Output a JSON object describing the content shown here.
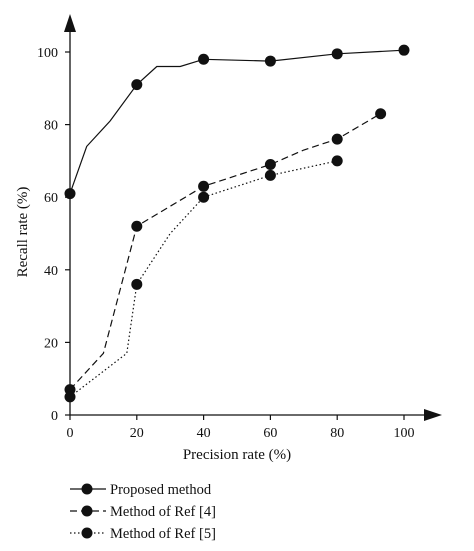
{
  "chart_data": {
    "type": "line",
    "title": "",
    "xlabel": "Precision rate (%)",
    "ylabel": "Recall rate (%)",
    "xlim": [
      0,
      100
    ],
    "ylim": [
      0,
      100
    ],
    "xticks": [
      0,
      20,
      40,
      60,
      80,
      100
    ],
    "yticks": [
      0,
      20,
      40,
      60,
      80,
      100
    ],
    "grid": false,
    "legend_position": "bottom-left",
    "series": [
      {
        "name": "Proposed method",
        "style": "solid",
        "color": "#111111",
        "x": [
          0,
          5,
          12,
          20,
          26,
          33,
          40,
          60,
          80,
          100
        ],
        "y": [
          61,
          74,
          81,
          91,
          96,
          96,
          98,
          97.5,
          99.5,
          100.5
        ],
        "marker_x": [
          0,
          20,
          40,
          60,
          80,
          100
        ],
        "marker_y": [
          61,
          91,
          98,
          97.5,
          99.5,
          100.5
        ]
      },
      {
        "name": "Method of Ref [4]",
        "style": "dashed",
        "color": "#111111",
        "x": [
          0,
          10,
          20,
          40,
          60,
          70,
          80,
          93
        ],
        "y": [
          7,
          17,
          52,
          63,
          69,
          73,
          76,
          83
        ],
        "marker_x": [
          0,
          20,
          40,
          60,
          80,
          93
        ],
        "marker_y": [
          7,
          52,
          63,
          69,
          76,
          83
        ]
      },
      {
        "name": "Method of Ref [5]",
        "style": "dotted",
        "color": "#111111",
        "x": [
          0,
          17,
          20,
          30,
          40,
          60,
          80
        ],
        "y": [
          5,
          17,
          36,
          50,
          60,
          66,
          70
        ],
        "marker_x": [
          0,
          20,
          40,
          60,
          80
        ],
        "marker_y": [
          5,
          36,
          60,
          66,
          70
        ]
      }
    ]
  }
}
